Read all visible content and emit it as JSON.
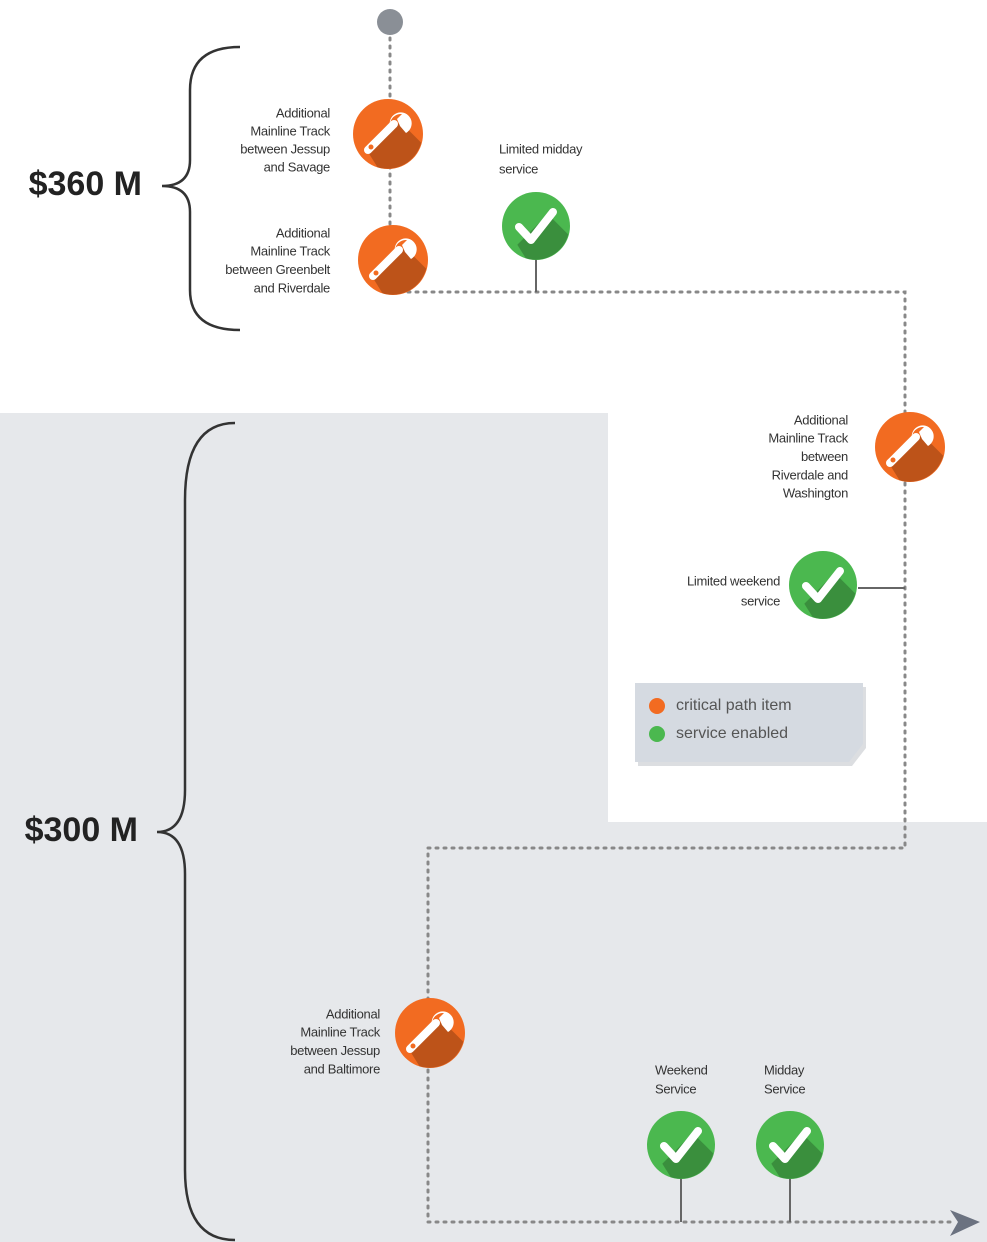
{
  "brackets": [
    {
      "label": "$360 M"
    },
    {
      "label": "$300 M"
    }
  ],
  "nodes": [
    {
      "icon": "wrench",
      "color": "#f26b21",
      "label": [
        "Additional",
        "Mainline Track",
        "between Jessup",
        "and Savage"
      ]
    },
    {
      "icon": "wrench",
      "color": "#f26b21",
      "label": [
        "Additional",
        "Mainline Track",
        "between Greenbelt",
        "and Riverdale"
      ]
    },
    {
      "icon": "check",
      "color": "#4bb84f",
      "label": [
        "Limited midday",
        "service"
      ]
    },
    {
      "icon": "wrench",
      "color": "#f26b21",
      "label": [
        "Additional",
        "Mainline Track",
        "between",
        "Riverdale and",
        "Washington"
      ]
    },
    {
      "icon": "check",
      "color": "#4bb84f",
      "label": [
        "Limited weekend",
        "service"
      ]
    },
    {
      "icon": "wrench",
      "color": "#f26b21",
      "label": [
        "Additional",
        "Mainline Track",
        "between Jessup",
        "and Baltimore"
      ]
    },
    {
      "icon": "check",
      "color": "#4bb84f",
      "label": [
        "Weekend",
        "Service"
      ]
    },
    {
      "icon": "check",
      "color": "#4bb84f",
      "label": [
        "Midday",
        "Service"
      ]
    }
  ],
  "legend": [
    {
      "label": "critical path item",
      "color": "#f26b21"
    },
    {
      "label": "service enabled",
      "color": "#4bb84f"
    }
  ]
}
